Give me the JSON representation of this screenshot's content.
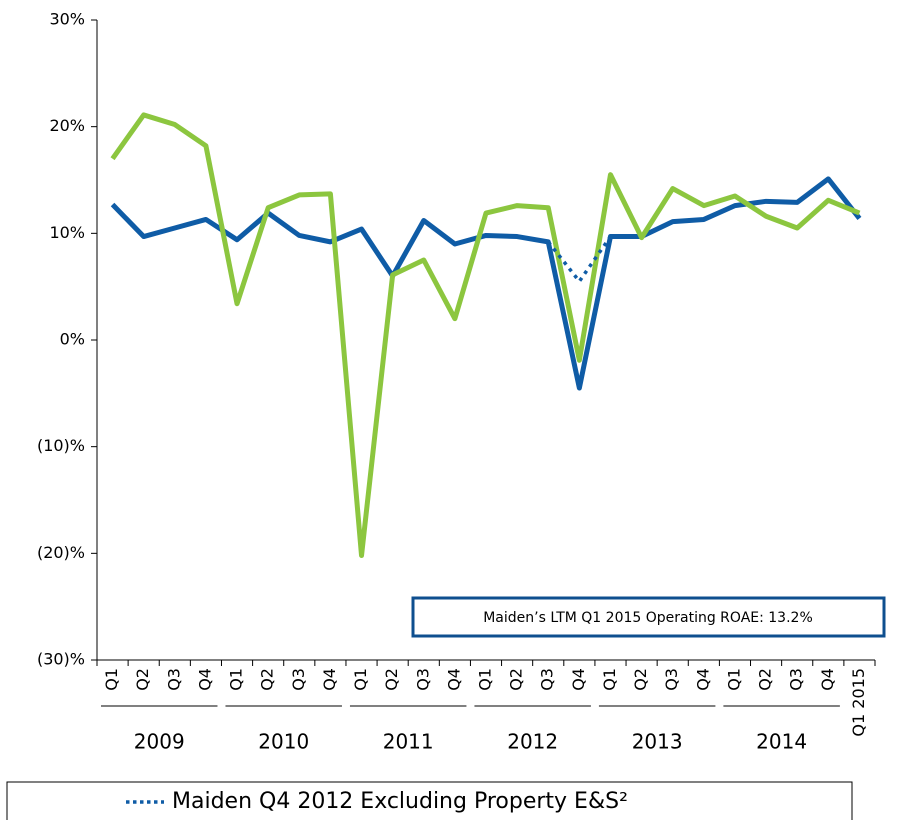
{
  "chart_data": {
    "type": "line",
    "categories": [
      "Q1",
      "Q2",
      "Q3",
      "Q4",
      "Q1",
      "Q2",
      "Q3",
      "Q4",
      "Q1",
      "Q2",
      "Q3",
      "Q4",
      "Q1",
      "Q2",
      "Q3",
      "Q4",
      "Q1",
      "Q2",
      "Q3",
      "Q4",
      "Q1",
      "Q2",
      "Q3",
      "Q4",
      "Q1 2015"
    ],
    "years": [
      "2009",
      "2010",
      "2011",
      "2012",
      "2013",
      "2014"
    ],
    "series": [
      {
        "color": "#0f5ca6",
        "values": [
          12.7,
          9.7,
          10.5,
          11.3,
          9.4,
          11.9,
          9.8,
          9.2,
          10.4,
          6.0,
          11.2,
          9.0,
          9.8,
          9.7,
          9.2,
          -4.5,
          9.7,
          9.7,
          11.1,
          11.3,
          12.6,
          13.0,
          12.9,
          15.1,
          11.4
        ]
      },
      {
        "color": "#8cc63f",
        "values": [
          17.0,
          21.1,
          20.2,
          18.2,
          3.4,
          12.4,
          13.6,
          13.7,
          -20.2,
          6.1,
          7.5,
          2.0,
          11.9,
          12.6,
          12.4,
          -1.9,
          15.5,
          9.6,
          14.2,
          12.6,
          13.5,
          11.6,
          10.5,
          13.1,
          11.9
        ]
      },
      {
        "name": "Maiden Q4 2012 Excluding Property E&S²",
        "color": "#0f5ca6",
        "dotted": true,
        "values": [
          null,
          null,
          null,
          null,
          null,
          null,
          null,
          null,
          null,
          null,
          null,
          null,
          null,
          null,
          9.2,
          5.5,
          9.7,
          null,
          null,
          null,
          null,
          null,
          null,
          null,
          null
        ]
      }
    ],
    "ylim": [
      -30,
      30
    ],
    "yticks": [
      {
        "value": 30,
        "label": "30%"
      },
      {
        "value": 20,
        "label": "20%"
      },
      {
        "value": 10,
        "label": "10%"
      },
      {
        "value": 0,
        "label": "0%"
      },
      {
        "value": -10,
        "label": "(10)%"
      },
      {
        "value": -20,
        "label": "(20)%"
      },
      {
        "value": -30,
        "label": "(30)%"
      }
    ],
    "annotation": "Maiden’s LTM Q1 2015 Operating ROAE: 13.2%"
  }
}
